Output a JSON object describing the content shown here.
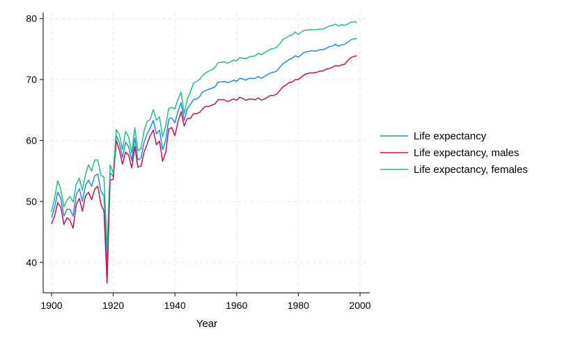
{
  "chart_data": {
    "type": "line",
    "title": "",
    "xlabel": "Year",
    "ylabel": "",
    "xlim": [
      1900,
      2000
    ],
    "ylim": [
      35,
      81
    ],
    "xticks": [
      1900,
      1920,
      1940,
      1960,
      1980,
      2000
    ],
    "yticks": [
      40,
      50,
      60,
      70,
      80
    ],
    "grid": true,
    "legend_position": "right",
    "x": [
      1900,
      1901,
      1902,
      1903,
      1904,
      1905,
      1906,
      1907,
      1908,
      1909,
      1910,
      1911,
      1912,
      1913,
      1914,
      1915,
      1916,
      1917,
      1918,
      1919,
      1920,
      1921,
      1922,
      1923,
      1924,
      1925,
      1926,
      1927,
      1928,
      1929,
      1930,
      1931,
      1932,
      1933,
      1934,
      1935,
      1936,
      1937,
      1938,
      1939,
      1940,
      1941,
      1942,
      1943,
      1944,
      1945,
      1946,
      1947,
      1948,
      1949,
      1950,
      1951,
      1952,
      1953,
      1954,
      1955,
      1956,
      1957,
      1958,
      1959,
      1960,
      1961,
      1962,
      1963,
      1964,
      1965,
      1966,
      1967,
      1968,
      1969,
      1970,
      1971,
      1972,
      1973,
      1974,
      1975,
      1976,
      1977,
      1978,
      1979,
      1980,
      1981,
      1982,
      1983,
      1984,
      1985,
      1986,
      1987,
      1988,
      1989,
      1990,
      1991,
      1992,
      1993,
      1994,
      1995,
      1996,
      1997,
      1998,
      1999
    ],
    "series": [
      {
        "name": "Life expectancy",
        "color": "#1f8ae6",
        "values": [
          47.3,
          49.1,
          51.5,
          50.5,
          47.6,
          48.7,
          48.7,
          47.6,
          51.1,
          52.1,
          50.0,
          52.6,
          53.5,
          52.5,
          54.2,
          54.5,
          51.7,
          50.9,
          39.1,
          54.7,
          54.1,
          60.8,
          59.6,
          57.2,
          59.7,
          59.0,
          56.7,
          60.4,
          56.8,
          57.1,
          59.7,
          61.1,
          62.1,
          63.3,
          61.1,
          61.7,
          58.5,
          60.0,
          63.5,
          63.7,
          62.9,
          64.8,
          66.2,
          63.3,
          65.2,
          65.9,
          66.7,
          66.8,
          67.2,
          68.0,
          68.2,
          68.4,
          68.6,
          68.8,
          69.6,
          69.6,
          69.7,
          69.5,
          69.6,
          69.9,
          69.7,
          70.2,
          70.1,
          69.9,
          70.2,
          70.2,
          70.2,
          70.5,
          70.2,
          70.5,
          70.8,
          71.1,
          71.2,
          71.4,
          72.0,
          72.6,
          72.9,
          73.3,
          73.5,
          73.9,
          73.7,
          74.1,
          74.5,
          74.6,
          74.7,
          74.7,
          74.7,
          74.9,
          74.9,
          75.1,
          75.4,
          75.5,
          75.8,
          75.5,
          75.7,
          75.8,
          76.1,
          76.5,
          76.7,
          76.7
        ]
      },
      {
        "name": "Life expectancy, males",
        "color": "#c8104e",
        "values": [
          46.3,
          47.6,
          49.8,
          49.1,
          46.2,
          47.3,
          46.9,
          45.6,
          49.5,
          50.5,
          48.4,
          50.9,
          51.5,
          50.3,
          52.0,
          52.5,
          49.6,
          48.4,
          36.6,
          53.5,
          53.6,
          60.0,
          58.4,
          56.1,
          58.1,
          57.6,
          55.5,
          59.0,
          55.6,
          55.8,
          58.1,
          59.4,
          60.8,
          61.7,
          59.3,
          59.9,
          56.6,
          58.0,
          61.9,
          62.1,
          60.8,
          63.1,
          64.7,
          62.4,
          63.6,
          63.6,
          64.4,
          64.4,
          64.6,
          65.2,
          65.6,
          65.6,
          65.8,
          66.0,
          66.7,
          66.7,
          66.7,
          66.4,
          66.6,
          66.8,
          66.6,
          67.1,
          66.9,
          66.6,
          66.8,
          66.8,
          66.7,
          67.0,
          66.6,
          66.8,
          67.1,
          67.4,
          67.4,
          67.6,
          68.2,
          68.8,
          69.1,
          69.5,
          69.6,
          70.0,
          70.0,
          70.4,
          70.8,
          71.0,
          71.1,
          71.1,
          71.2,
          71.4,
          71.4,
          71.7,
          71.8,
          72.0,
          72.3,
          72.2,
          72.4,
          72.5,
          73.1,
          73.6,
          73.8,
          73.9
        ]
      },
      {
        "name": "Life expectancy, females",
        "color": "#1fbf7f",
        "values": [
          48.3,
          50.6,
          53.4,
          52.0,
          49.1,
          50.2,
          50.8,
          49.9,
          52.8,
          53.8,
          51.8,
          54.4,
          56.0,
          55.0,
          56.8,
          56.8,
          54.3,
          54.0,
          42.2,
          56.0,
          54.6,
          61.8,
          61.0,
          58.5,
          61.5,
          60.6,
          58.0,
          62.1,
          58.3,
          58.7,
          61.6,
          63.1,
          63.5,
          65.1,
          63.3,
          63.9,
          60.6,
          62.4,
          65.3,
          65.4,
          65.2,
          66.8,
          67.9,
          64.4,
          66.8,
          67.9,
          69.4,
          69.7,
          70.0,
          70.7,
          71.1,
          71.4,
          71.6,
          72.0,
          72.8,
          72.8,
          72.9,
          72.7,
          72.9,
          73.2,
          73.1,
          73.6,
          73.5,
          73.4,
          73.7,
          73.8,
          73.9,
          74.3,
          74.1,
          74.4,
          74.7,
          75.0,
          75.1,
          75.3,
          75.9,
          76.6,
          76.8,
          77.2,
          77.3,
          77.8,
          77.4,
          77.8,
          78.1,
          78.1,
          78.2,
          78.2,
          78.2,
          78.3,
          78.3,
          78.5,
          78.8,
          78.9,
          79.1,
          78.8,
          79.0,
          78.9,
          79.1,
          79.4,
          79.5,
          79.4
        ]
      }
    ]
  }
}
